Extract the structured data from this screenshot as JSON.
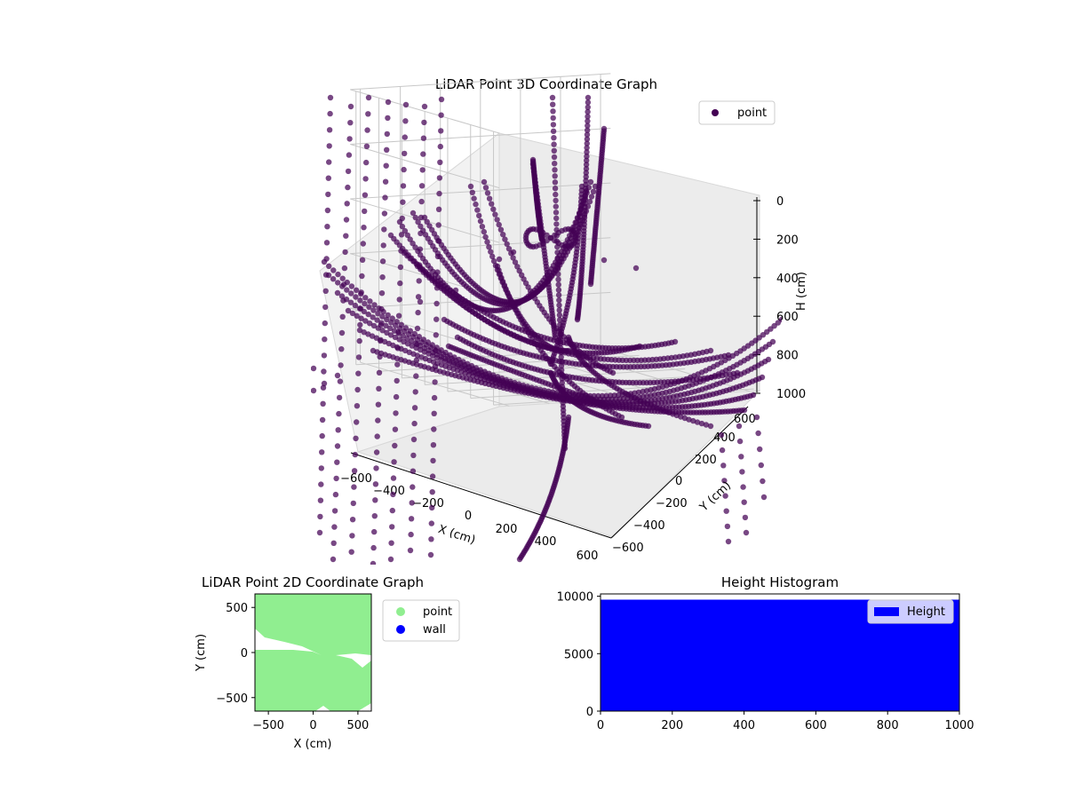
{
  "figure": {
    "background": "#ffffff"
  },
  "chart_data": [
    {
      "type": "scatter",
      "projection": "3d",
      "title": "LiDAR Point 3D Coordinate Graph",
      "xlabel": "X (cm)",
      "ylabel": "Y (cm)",
      "zlabel": "H (cm)",
      "xlim": [
        -650,
        650
      ],
      "ylim": [
        -650,
        650
      ],
      "zlim": [
        1000,
        0
      ],
      "z_inverted": true,
      "xticks": [
        "−600",
        "−400",
        "−200",
        "0",
        "200",
        "400",
        "600"
      ],
      "yticks": [
        "−600",
        "−400",
        "−200",
        "0",
        "200",
        "400",
        "600"
      ],
      "zticks": [
        "0",
        "200",
        "400",
        "600",
        "800",
        "1000"
      ],
      "grid": true,
      "legend": {
        "position": "top-right",
        "entries": [
          {
            "label": "point",
            "color": "#440154"
          }
        ]
      },
      "series": [
        {
          "name": "point",
          "color": "#440154",
          "description": "Dense LiDAR scan rings forming concentric bowl-shaped arcs converging near the origin, plus sparse vertical columns of points at the outer edges"
        }
      ]
    },
    {
      "type": "scatter",
      "title": "LiDAR Point 2D Coordinate Graph",
      "xlabel": "X (cm)",
      "ylabel": "Y (cm)",
      "xlim": [
        -650,
        650
      ],
      "ylim": [
        -650,
        650
      ],
      "xticks": [
        "−500",
        "0",
        "500"
      ],
      "yticks": [
        "−500",
        "0",
        "500"
      ],
      "grid": false,
      "legend": {
        "position": "outside-right",
        "entries": [
          {
            "label": "point",
            "color": "#90ee90"
          },
          {
            "label": "wall",
            "color": "#0000ff"
          }
        ]
      },
      "series": [
        {
          "name": "point",
          "color": "#90ee90",
          "description": "Points fill nearly the whole XY area, with an empty wedge along the −X side just above Y=0 and small gaps along the edges"
        },
        {
          "name": "wall",
          "color": "#0000ff",
          "values": []
        }
      ]
    },
    {
      "type": "bar",
      "subtype": "histogram",
      "title": "Height Histogram",
      "xlabel": "",
      "ylabel": "",
      "xlim": [
        0,
        1000
      ],
      "ylim": [
        0,
        10200
      ],
      "xticks": [
        "0",
        "200",
        "400",
        "600",
        "800",
        "1000"
      ],
      "yticks": [
        "0",
        "5000",
        "10000"
      ],
      "grid": false,
      "legend": {
        "position": "top-right",
        "entries": [
          {
            "label": "Height",
            "color": "#0000ff"
          }
        ]
      },
      "series": [
        {
          "name": "Height",
          "color": "#0000ff",
          "bins": [
            {
              "x0": 0,
              "x1": 1000,
              "count": 9700
            }
          ]
        }
      ]
    }
  ]
}
